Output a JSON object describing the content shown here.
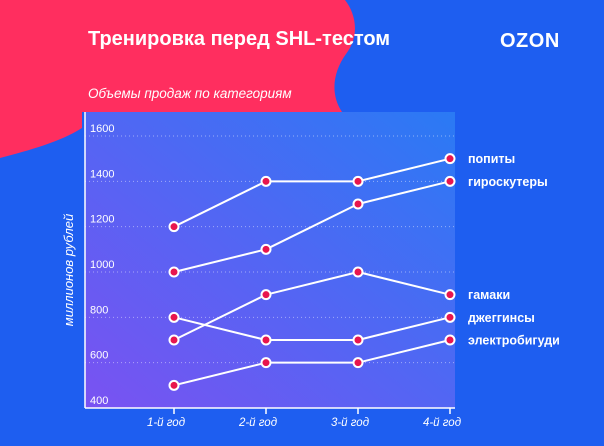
{
  "header": {
    "title": "Тренировка перед SHL-тестом",
    "logo": "OZON",
    "subtitle": "Объемы продаж по категориям"
  },
  "colors": {
    "background": "#1e5ef0",
    "blob": "#ff2e5f",
    "plot_gradient_start": "#7a52f2",
    "plot_gradient_end": "#2a7af4",
    "line": "#ffffff",
    "marker": "#e8164e"
  },
  "chart_data": {
    "type": "line",
    "title": "Объемы продаж по категориям",
    "xlabel": "",
    "ylabel": "миллионов рублей",
    "categories": [
      "1-й год",
      "2-й год",
      "3-й год",
      "4-й год"
    ],
    "ylim": [
      400,
      1600
    ],
    "yticks": [
      400,
      600,
      800,
      1000,
      1200,
      1400,
      1600
    ],
    "grid": true,
    "legend": "right, labels at line ends",
    "series": [
      {
        "name": "попиты",
        "values": [
          1200,
          1400,
          1400,
          1500
        ]
      },
      {
        "name": "гироскутеры",
        "values": [
          1000,
          1100,
          1300,
          1400
        ]
      },
      {
        "name": "гамаки",
        "values": [
          700,
          900,
          1000,
          900
        ]
      },
      {
        "name": "джеггинсы",
        "values": [
          800,
          700,
          700,
          800
        ]
      },
      {
        "name": "электробигуди",
        "values": [
          500,
          600,
          600,
          700
        ]
      }
    ]
  }
}
